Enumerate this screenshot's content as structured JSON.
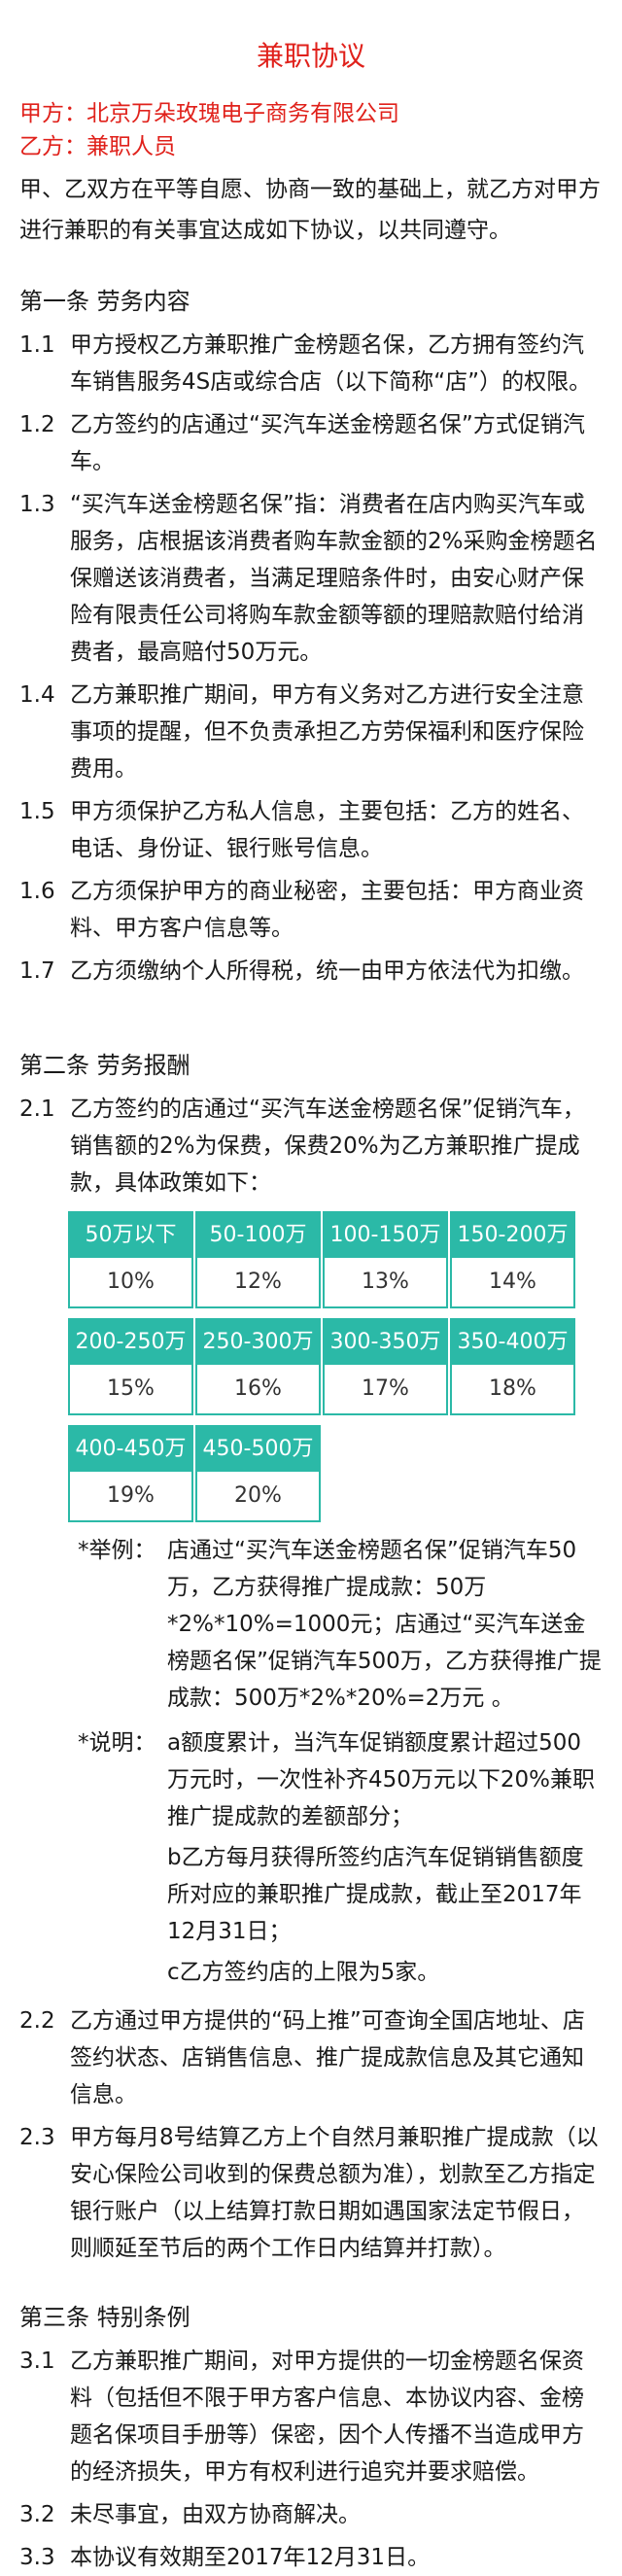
{
  "title": "兼职协议",
  "party_a": "甲方：北京万朵玫瑰电子商务有限公司",
  "party_b": "乙方：兼职人员",
  "preamble": "甲、乙双方在平等自愿、协商一致的基础上，就乙方对甲方进行兼职的有关事宜达成如下协议，以共同遵守。",
  "sec1": {
    "head": "第一条  劳务内容",
    "items": [
      {
        "num": "1.1",
        "text": "甲方授权乙方兼职推广金榜题名保，乙方拥有签约汽车销售服务4S店或综合店（以下简称“店”）的权限。"
      },
      {
        "num": "1.2",
        "text": "乙方签约的店通过“买汽车送金榜题名保”方式促销汽车。"
      },
      {
        "num": "1.3",
        "text": "“买汽车送金榜题名保”指：消费者在店内购买汽车或服务，店根据该消费者购车款金额的2%采购金榜题名保赠送该消费者，当满足理赔条件时，由安心财产保险有限责任公司将购车款金额等额的理赔款赔付给消费者，最高赔付50万元。"
      },
      {
        "num": "1.4",
        "text": "乙方兼职推广期间，甲方有义务对乙方进行安全注意事项的提醒，但不负责承担乙方劳保福利和医疗保险费用。"
      },
      {
        "num": "1.5",
        "text": "甲方须保护乙方私人信息，主要包括：乙方的姓名、电话、身份证、银行账号信息。"
      },
      {
        "num": "1.6",
        "text": "乙方须保护甲方的商业秘密，主要包括：甲方商业资料、甲方客户信息等。"
      },
      {
        "num": "1.7",
        "text": "乙方须缴纳个人所得税，统一由甲方依法代为扣缴。"
      }
    ]
  },
  "sec2": {
    "head": "第二条  劳务报酬",
    "item1": {
      "num": "2.1",
      "text": "乙方签约的店通过“买汽车送金榜题名保”促销汽车，销售额的2%为保费，保费20%为乙方兼职推广提成款，具体政策如下："
    },
    "rates": [
      {
        "range": "50万以下",
        "rate": "10%"
      },
      {
        "range": "50-100万",
        "rate": "12%"
      },
      {
        "range": "100-150万",
        "rate": "13%"
      },
      {
        "range": "150-200万",
        "rate": "14%"
      },
      {
        "range": "200-250万",
        "rate": "15%"
      },
      {
        "range": "250-300万",
        "rate": "16%"
      },
      {
        "range": "300-350万",
        "rate": "17%"
      },
      {
        "range": "350-400万",
        "rate": "18%"
      },
      {
        "range": "400-450万",
        "rate": "19%"
      },
      {
        "range": "450-500万",
        "rate": "20%"
      }
    ],
    "example_label": "*举例：",
    "example_text": "店通过“买汽车送金榜题名保”促销汽车50万，乙方获得推广提成款：50万*2%*10%=1000元；店通过“买汽车送金榜题名保”促销汽车500万，乙方获得推广提成款：500万*2%*20%=2万元 。",
    "explain_label": "*说明：",
    "explain_a": "a额度累计，当汽车促销额度累计超过500万元时，一次性补齐450万元以下20%兼职推广提成款的差额部分；",
    "explain_b": "b乙方每月获得所签约店汽车促销销售额度所对应的兼职推广提成款，截止至2017年12月31日；",
    "explain_c": "c乙方签约店的上限为5家。",
    "item2": {
      "num": "2.2",
      "text": "乙方通过甲方提供的“码上推”可查询全国店地址、店签约状态、店销售信息、推广提成款信息及其它通知信息。"
    },
    "item3": {
      "num": "2.3",
      "text": "甲方每月8号结算乙方上个自然月兼职推广提成款（以安心保险公司收到的保费总额为准），划款至乙方指定银行账户（以上结算打款日期如遇国家法定节假日，则顺延至节后的两个工作日内结算并打款）。"
    }
  },
  "sec3": {
    "head": "第三条  特别条例",
    "items": [
      {
        "num": "3.1",
        "text": "乙方兼职推广期间，对甲方提供的一切金榜题名保资料（包括但不限于甲方客户信息、本协议内容、金榜题名保项目手册等）保密，因个人传播不当造成甲方的经济损失，甲方有权利进行追究并要求赔偿。"
      },
      {
        "num": "3.2",
        "text": "未尽事宜，由双方协商解决。"
      },
      {
        "num": "3.3",
        "text": "本协议有效期至2017年12月31日。"
      }
    ]
  }
}
